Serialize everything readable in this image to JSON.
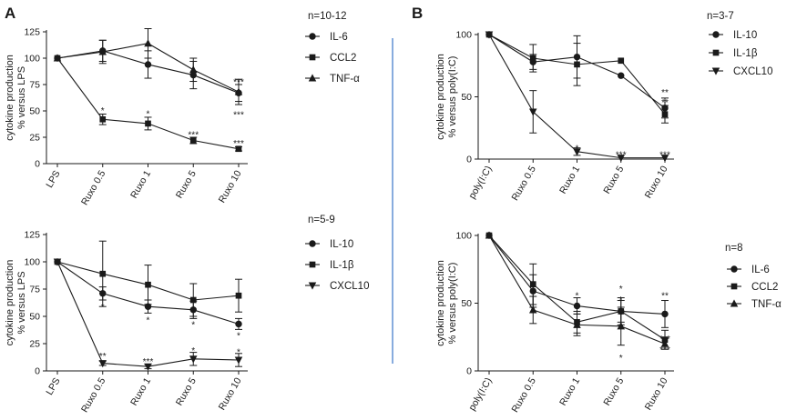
{
  "panel_labels": [
    "A",
    "B"
  ],
  "divider_color": "#3a74c8",
  "chart_data": [
    {
      "id": "A-top",
      "type": "line",
      "n_label": "n=10-12",
      "ylabel_lines": [
        "cytokine production",
        "% versus LPS"
      ],
      "categories": [
        "LPS",
        "Ruxo 0.5",
        "Ruxo 1",
        "Ruxo 5",
        "Ruxo 10"
      ],
      "ylim": [
        0,
        125
      ],
      "yticks": [
        0,
        25,
        50,
        75,
        100,
        125
      ],
      "legend_position": "right",
      "series": [
        {
          "name": "IL-6",
          "marker": "circle",
          "values": [
            100,
            107,
            94,
            84,
            67
          ],
          "errors": [
            0,
            10,
            13,
            13,
            8
          ]
        },
        {
          "name": "CCL2",
          "marker": "square",
          "values": [
            100,
            42,
            38,
            22,
            14
          ],
          "errors": [
            0,
            5,
            6,
            3,
            2
          ]
        },
        {
          "name": "TNF-α",
          "marker": "triangle-up",
          "values": [
            100,
            106,
            114,
            89,
            68
          ],
          "errors": [
            0,
            11,
            14,
            11,
            12
          ]
        }
      ],
      "annotations": [
        {
          "x": "Ruxo 0.5",
          "y": 51,
          "text": "*"
        },
        {
          "x": "Ruxo 1",
          "y": 48,
          "text": "*"
        },
        {
          "x": "Ruxo 5",
          "y": 28,
          "text": "***"
        },
        {
          "x": "Ruxo 10",
          "y": 20,
          "text": "***"
        },
        {
          "x": "Ruxo 10",
          "y": 78,
          "text": "***"
        },
        {
          "x": "Ruxo 10",
          "y": 47,
          "text": "***"
        }
      ]
    },
    {
      "id": "A-bottom",
      "type": "line",
      "n_label": "n=5-9",
      "ylabel_lines": [
        "cytokine production",
        "% versus LPS"
      ],
      "categories": [
        "LPS",
        "Ruxo 0.5",
        "Ruxo 1",
        "Ruxo 5",
        "Ruxo 10"
      ],
      "ylim": [
        0,
        125
      ],
      "yticks": [
        0,
        25,
        50,
        75,
        100,
        125
      ],
      "legend_position": "right",
      "series": [
        {
          "name": "IL-10",
          "marker": "circle",
          "values": [
            100,
            71,
            59,
            56,
            43
          ],
          "errors": [
            0,
            6,
            6,
            8,
            5
          ]
        },
        {
          "name": "IL-1β",
          "marker": "square",
          "values": [
            100,
            89,
            79,
            65,
            69
          ],
          "errors": [
            0,
            30,
            18,
            15,
            15
          ]
        },
        {
          "name": "CXCL10",
          "marker": "triangle-down",
          "values": [
            100,
            7,
            4,
            11,
            10
          ],
          "errors": [
            0,
            2,
            2,
            6,
            6
          ]
        }
      ],
      "annotations": [
        {
          "x": "Ruxo 0.5",
          "y": 59,
          "text": "*"
        },
        {
          "x": "Ruxo 1",
          "y": 47,
          "text": "*"
        },
        {
          "x": "Ruxo 5",
          "y": 43,
          "text": "*"
        },
        {
          "x": "Ruxo 10",
          "y": 33,
          "text": "*"
        },
        {
          "x": "Ruxo 0.5",
          "y": 14,
          "text": "**"
        },
        {
          "x": "Ruxo 1",
          "y": 9,
          "text": "***"
        },
        {
          "x": "Ruxo 5",
          "y": 19,
          "text": "*"
        },
        {
          "x": "Ruxo 10",
          "y": 18,
          "text": "*"
        }
      ]
    },
    {
      "id": "B-top",
      "type": "line",
      "n_label": "n=3-7",
      "ylabel_lines": [
        "cytokine production",
        "% versus poly(I:C)"
      ],
      "categories": [
        "poly(I:C)",
        "Ruxo 0.5",
        "Ruxo 1",
        "Ruxo 5",
        "Ruxo 10"
      ],
      "ylim": [
        0,
        100
      ],
      "yticks": [
        0,
        50,
        100
      ],
      "legend_position": "right",
      "series": [
        {
          "name": "IL-10",
          "marker": "circle",
          "values": [
            100,
            78,
            82,
            67,
            41
          ],
          "errors": [
            0,
            6,
            17,
            0,
            8
          ]
        },
        {
          "name": "IL-1β",
          "marker": "square",
          "values": [
            100,
            81,
            76,
            79,
            36
          ],
          "errors": [
            0,
            11,
            17,
            0,
            7
          ]
        },
        {
          "name": "CXCL10",
          "marker": "triangle-down",
          "values": [
            100,
            38,
            6,
            1,
            1
          ],
          "errors": [
            0,
            17,
            3,
            0,
            0
          ]
        }
      ],
      "annotations": [
        {
          "x": "Ruxo 1",
          "y": 9,
          "text": "*"
        },
        {
          "x": "Ruxo 5",
          "y": 4,
          "text": "***"
        },
        {
          "x": "Ruxo 10",
          "y": 4,
          "text": "***"
        },
        {
          "x": "Ruxo 10",
          "y": 54,
          "text": "**"
        },
        {
          "x": "Ruxo 10",
          "y": 46,
          "text": "**"
        }
      ]
    },
    {
      "id": "B-bottom",
      "type": "line",
      "n_label": "n=8",
      "ylabel_lines": [
        "cytokine production",
        "% versus poly(I:C)"
      ],
      "categories": [
        "poly(I:C)",
        "Ruxo 0.5",
        "Ruxo 1",
        "Ruxo 5",
        "Ruxo 10"
      ],
      "ylim": [
        0,
        100
      ],
      "yticks": [
        0,
        50,
        100
      ],
      "legend_position": "right",
      "series": [
        {
          "name": "IL-6",
          "marker": "circle",
          "values": [
            100,
            59,
            48,
            44,
            42
          ],
          "errors": [
            0,
            12,
            6,
            8,
            10
          ]
        },
        {
          "name": "CCL2",
          "marker": "square",
          "values": [
            100,
            64,
            36,
            44,
            23
          ],
          "errors": [
            0,
            15,
            8,
            10,
            7
          ]
        },
        {
          "name": "TNF-α",
          "marker": "triangle-up",
          "values": [
            100,
            45,
            34,
            33,
            20
          ],
          "errors": [
            0,
            10,
            8,
            14,
            4
          ]
        }
      ],
      "annotations": [
        {
          "x": "Ruxo 1",
          "y": 56,
          "text": "*"
        },
        {
          "x": "Ruxo 5",
          "y": 61,
          "text": "*"
        },
        {
          "x": "Ruxo 5",
          "y": 53,
          "text": "*"
        },
        {
          "x": "Ruxo 5",
          "y": 10,
          "text": "*"
        },
        {
          "x": "Ruxo 10",
          "y": 56,
          "text": "**"
        },
        {
          "x": "Ruxo 10",
          "y": 24,
          "text": "***"
        },
        {
          "x": "Ruxo 10",
          "y": 16,
          "text": "***"
        }
      ]
    }
  ]
}
